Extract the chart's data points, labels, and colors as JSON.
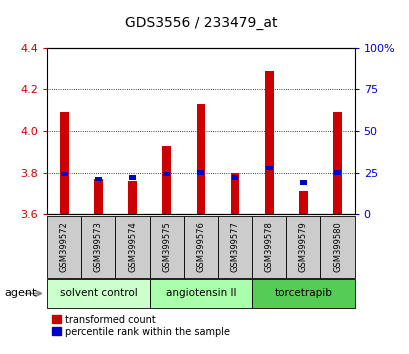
{
  "title": "GDS3556 / 233479_at",
  "samples": [
    "GSM399572",
    "GSM399573",
    "GSM399574",
    "GSM399575",
    "GSM399576",
    "GSM399577",
    "GSM399578",
    "GSM399579",
    "GSM399580"
  ],
  "transformed_counts": [
    4.09,
    3.77,
    3.76,
    3.93,
    4.13,
    3.8,
    4.29,
    3.71,
    4.09
  ],
  "percentile_ranks": [
    24.0,
    21.0,
    22.0,
    24.0,
    25.0,
    22.0,
    28.0,
    19.0,
    25.0
  ],
  "ymin": 3.6,
  "ymax": 4.4,
  "yticks": [
    3.6,
    3.8,
    4.0,
    4.2,
    4.4
  ],
  "right_yticks": [
    0,
    25,
    50,
    75,
    100
  ],
  "bar_color_red": "#cc0000",
  "bar_color_blue": "#0000cc",
  "agent_groups": [
    {
      "label": "solvent control",
      "start": 0,
      "end": 2,
      "color": "#ccffcc"
    },
    {
      "label": "angiotensin II",
      "start": 3,
      "end": 5,
      "color": "#aaffaa"
    },
    {
      "label": "torcetrapib",
      "start": 6,
      "end": 8,
      "color": "#55cc55"
    }
  ],
  "agent_label": "agent",
  "legend_labels": [
    "transformed count",
    "percentile rank within the sample"
  ],
  "bar_width": 0.25,
  "tick_color_left": "#cc0000",
  "tick_color_right": "#0000cc",
  "sample_box_color": "#cccccc",
  "fig_width": 4.1,
  "fig_height": 3.54,
  "dpi": 100
}
